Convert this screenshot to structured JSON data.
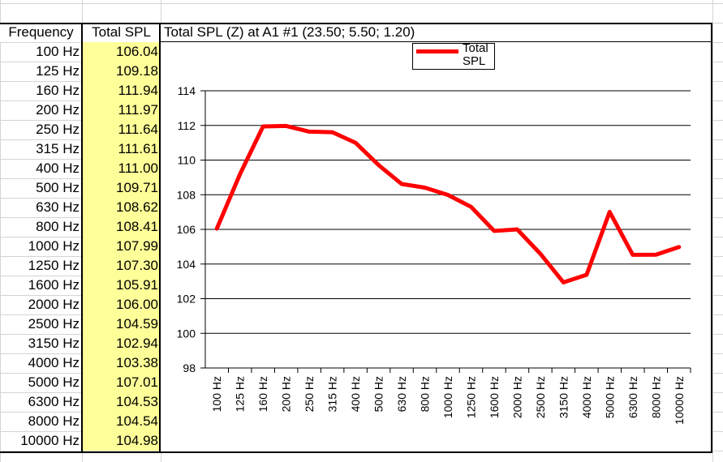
{
  "table": {
    "header_frequency": "Frequency",
    "header_total_spl": "Total SPL",
    "rows": [
      {
        "freq": "100 Hz",
        "spl": "106.04"
      },
      {
        "freq": "125 Hz",
        "spl": "109.18"
      },
      {
        "freq": "160 Hz",
        "spl": "111.94"
      },
      {
        "freq": "200 Hz",
        "spl": "111.97"
      },
      {
        "freq": "250 Hz",
        "spl": "111.64"
      },
      {
        "freq": "315 Hz",
        "spl": "111.61"
      },
      {
        "freq": "400 Hz",
        "spl": "111.00"
      },
      {
        "freq": "500 Hz",
        "spl": "109.71"
      },
      {
        "freq": "630 Hz",
        "spl": "108.62"
      },
      {
        "freq": "800 Hz",
        "spl": "108.41"
      },
      {
        "freq": "1000 Hz",
        "spl": "107.99"
      },
      {
        "freq": "1250 Hz",
        "spl": "107.30"
      },
      {
        "freq": "1600 Hz",
        "spl": "105.91"
      },
      {
        "freq": "2000 Hz",
        "spl": "106.00"
      },
      {
        "freq": "2500 Hz",
        "spl": "104.59"
      },
      {
        "freq": "3150 Hz",
        "spl": "102.94"
      },
      {
        "freq": "4000 Hz",
        "spl": "103.38"
      },
      {
        "freq": "5000 Hz",
        "spl": "107.01"
      },
      {
        "freq": "6300 Hz",
        "spl": "104.53"
      },
      {
        "freq": "8000 Hz",
        "spl": "104.54"
      },
      {
        "freq": "10000 Hz",
        "spl": "104.98"
      }
    ],
    "spl_fill_color": "#ffff99"
  },
  "chart_data": {
    "type": "line",
    "title": "Total SPL (Z) at A1 #1  (23.50; 5.50; 1.20)",
    "xlabel": "",
    "ylabel": "",
    "categories": [
      "100 Hz",
      "125 Hz",
      "160 Hz",
      "200 Hz",
      "250 Hz",
      "315 Hz",
      "400 Hz",
      "500 Hz",
      "630 Hz",
      "800 Hz",
      "1000 Hz",
      "1250 Hz",
      "1600 Hz",
      "2000 Hz",
      "2500 Hz",
      "3150 Hz",
      "4000 Hz",
      "5000 Hz",
      "6300 Hz",
      "8000 Hz",
      "10000 Hz"
    ],
    "series": [
      {
        "name": "Total SPL",
        "color": "#ff0000",
        "values": [
          106.04,
          109.18,
          111.94,
          111.97,
          111.64,
          111.61,
          111.0,
          109.71,
          108.62,
          108.41,
          107.99,
          107.3,
          105.91,
          106.0,
          104.59,
          102.94,
          103.38,
          107.01,
          104.53,
          104.54,
          104.98
        ]
      }
    ],
    "ylim": [
      98,
      114
    ],
    "yticks": [
      98,
      100,
      102,
      104,
      106,
      108,
      110,
      112,
      114
    ],
    "ytick_labels": [
      "98",
      "100",
      "102",
      "104",
      "106",
      "108",
      "110",
      "112",
      "114"
    ],
    "grid": true,
    "legend_position": "top-center"
  }
}
